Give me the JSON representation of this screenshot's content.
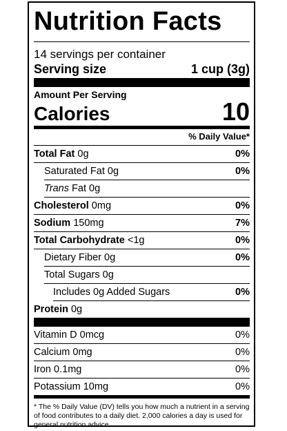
{
  "title": "Nutrition Facts",
  "servings_per_container": "14 servings per container",
  "serving_size": {
    "label": "Serving size",
    "value": "1 cup (3g)"
  },
  "amount_per_serving": "Amount Per Serving",
  "calories": {
    "label": "Calories",
    "value": "10"
  },
  "daily_value_header": "% Daily Value*",
  "nutrients": {
    "total_fat": {
      "name": "Total Fat",
      "amount": "0g",
      "dv": "0%"
    },
    "saturated_fat": {
      "name": "Saturated Fat",
      "amount": "0g",
      "dv": "0%"
    },
    "trans_fat": {
      "name_italic": "Trans",
      "name": "Fat",
      "amount": "0g"
    },
    "cholesterol": {
      "name": "Cholesterol",
      "amount": "0mg",
      "dv": "0%"
    },
    "sodium": {
      "name": "Sodium",
      "amount": "150mg",
      "dv": "7%"
    },
    "total_carbohydrate": {
      "name": "Total Carbohydrate",
      "amount": "<1g",
      "dv": "0%"
    },
    "dietary_fiber": {
      "name": "Dietary Fiber",
      "amount": "0g",
      "dv": "0%"
    },
    "total_sugars": {
      "name": "Total Sugars",
      "amount": "0g"
    },
    "added_sugars": {
      "name": "Includes 0g Added Sugars",
      "dv": "0%"
    },
    "protein": {
      "name": "Protein",
      "amount": "0g"
    }
  },
  "vitamins": [
    {
      "name": "Vitamin D",
      "amount": "0mcg",
      "dv": "0%"
    },
    {
      "name": "Calcium",
      "amount": "0mg",
      "dv": "0%"
    },
    {
      "name": "Iron",
      "amount": "0.1mg",
      "dv": "0%"
    },
    {
      "name": "Potassium",
      "amount": "10mg",
      "dv": "0%"
    }
  ],
  "footnote": "* The % Daily Value (DV) tells you how much a nutrient in a serving of food contributes to a daily diet. 2,000 calories a day is used for general nutrition advice."
}
